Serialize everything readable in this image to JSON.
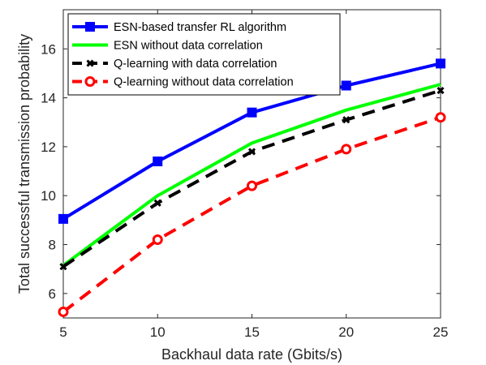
{
  "chart_data": {
    "type": "line",
    "xlabel": "Backhaul data rate (Gbits/s)",
    "ylabel": "Total successful transmission probability",
    "x": [
      5,
      10,
      15,
      20,
      25
    ],
    "xlim": [
      5,
      25
    ],
    "ylim": [
      5,
      17.6
    ],
    "xticks": [
      5,
      10,
      15,
      20,
      25
    ],
    "yticks": [
      6,
      8,
      10,
      12,
      14,
      16
    ],
    "grid": false,
    "legend_position": "top-left",
    "series": [
      {
        "name": "ESN-based transfer RL algorithm",
        "values": [
          9.05,
          11.4,
          13.4,
          14.5,
          15.4
        ],
        "color": "#0000ff",
        "line_style": "solid",
        "marker": "square"
      },
      {
        "name": "ESN without data correlation",
        "values": [
          7.15,
          10.0,
          12.15,
          13.5,
          14.55
        ],
        "color": "#00ff00",
        "line_style": "solid",
        "marker": "none"
      },
      {
        "name": "Q-learning with data correlation",
        "values": [
          7.1,
          9.7,
          11.8,
          13.1,
          14.3
        ],
        "color": "#000000",
        "line_style": "dashed",
        "marker": "x"
      },
      {
        "name": "Q-learning without data correlation",
        "values": [
          5.25,
          8.2,
          10.4,
          11.9,
          13.2
        ],
        "color": "#ff0000",
        "line_style": "dashed",
        "marker": "circle"
      }
    ]
  }
}
